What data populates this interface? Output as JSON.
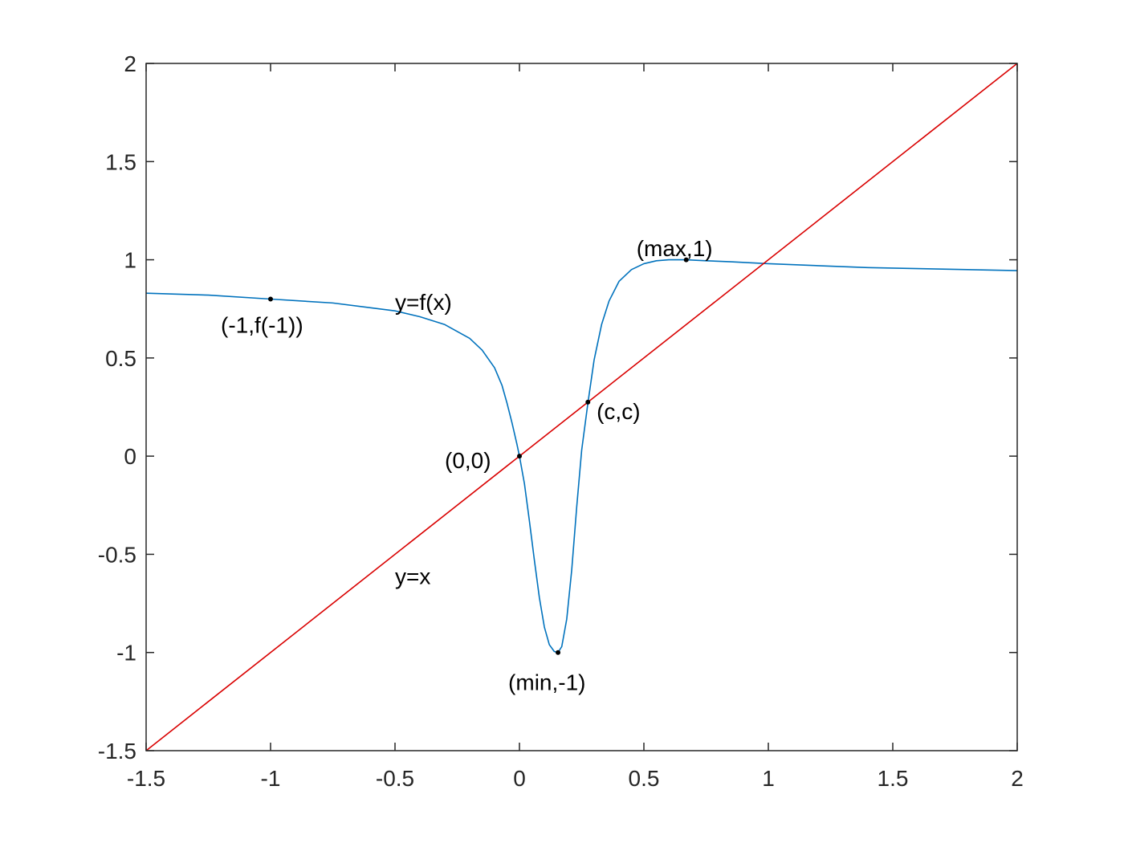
{
  "chart_data": {
    "type": "line",
    "xlim": [
      -1.5,
      2
    ],
    "ylim": [
      -1.5,
      2
    ],
    "x_ticks": [
      -1.5,
      -1,
      -0.5,
      0,
      0.5,
      1,
      1.5,
      2
    ],
    "y_ticks": [
      -1.5,
      -1,
      -0.5,
      0,
      0.5,
      1,
      1.5,
      2
    ],
    "x_tick_labels": [
      "-1.5",
      "-1",
      "-0.5",
      "0",
      "0.5",
      "1",
      "1.5",
      "2"
    ],
    "y_tick_labels": [
      "-1.5",
      "-1",
      "-0.5",
      "0",
      "0.5",
      "1",
      "1.5",
      "2"
    ],
    "grid": false,
    "series": [
      {
        "color": "#0072bd",
        "x": [
          -1.5,
          -1.25,
          -1.0,
          -0.75,
          -0.5,
          -0.4,
          -0.3,
          -0.2,
          -0.15,
          -0.1,
          -0.07,
          -0.05,
          -0.03,
          -0.01,
          0,
          0.02,
          0.04,
          0.06,
          0.08,
          0.1,
          0.12,
          0.14,
          0.155,
          0.17,
          0.19,
          0.21,
          0.23,
          0.25,
          0.275,
          0.3,
          0.33,
          0.36,
          0.4,
          0.45,
          0.5,
          0.55,
          0.6,
          0.67,
          0.75,
          0.85,
          1.0,
          1.2,
          1.4,
          1.6,
          1.8,
          2.0
        ],
        "y": [
          0.83,
          0.82,
          0.8,
          0.78,
          0.74,
          0.71,
          0.67,
          0.6,
          0.54,
          0.45,
          0.36,
          0.27,
          0.17,
          0.06,
          0,
          -0.14,
          -0.33,
          -0.53,
          -0.72,
          -0.87,
          -0.96,
          -0.995,
          -1.0,
          -0.97,
          -0.83,
          -0.58,
          -0.26,
          0.03,
          0.27,
          0.49,
          0.67,
          0.79,
          0.89,
          0.95,
          0.98,
          0.995,
          1.0,
          1.0,
          0.995,
          0.99,
          0.98,
          0.97,
          0.96,
          0.955,
          0.95,
          0.945
        ]
      },
      {
        "color": "#d90000",
        "x": [
          -1.5,
          2
        ],
        "y": [
          -1.5,
          2
        ]
      }
    ],
    "points": [
      {
        "x": -1,
        "y": 0.8
      },
      {
        "x": 0,
        "y": 0
      },
      {
        "x": 0.155,
        "y": -1.0
      },
      {
        "x": 0.275,
        "y": 0.275
      },
      {
        "x": 0.67,
        "y": 1.0
      }
    ],
    "annotations": [
      {
        "text": "y=f(x)",
        "x": -0.5,
        "y": 0.785,
        "anchor": "start"
      },
      {
        "text": "y=x",
        "x": -0.5,
        "y": -0.61,
        "anchor": "start"
      },
      {
        "text": "(-1,f(-1))",
        "x": -1.2,
        "y": 0.67,
        "anchor": "start"
      },
      {
        "text": "(0,0)",
        "x": -0.3,
        "y": -0.02,
        "anchor": "start"
      },
      {
        "text": "(c,c)",
        "x": 0.31,
        "y": 0.23,
        "anchor": "start"
      },
      {
        "text": "(max,1)",
        "x": 0.47,
        "y": 1.06,
        "anchor": "start"
      },
      {
        "text": "(min,-1)",
        "x": -0.045,
        "y": -1.15,
        "anchor": "start"
      }
    ]
  }
}
